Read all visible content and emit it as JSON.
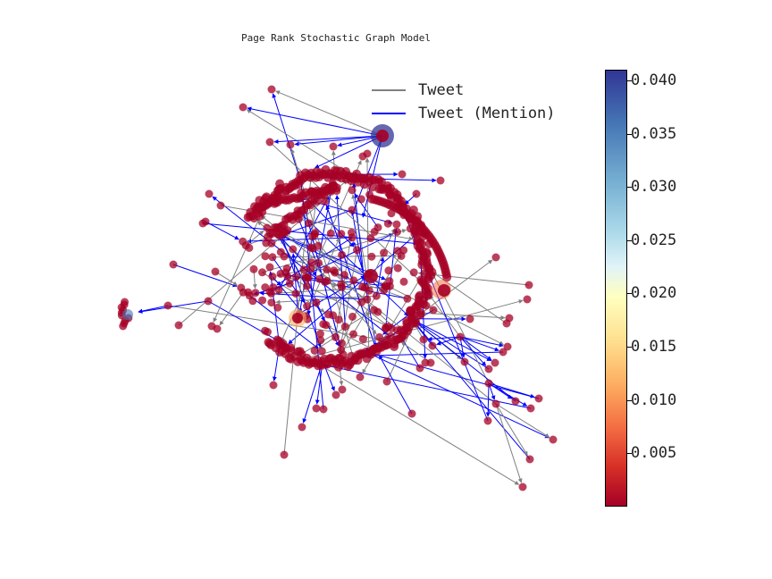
{
  "title": "Page Rank Stochastic Graph Model",
  "legend": [
    {
      "label": "Tweet",
      "color": "#808080"
    },
    {
      "label": "Tweet (Mention)",
      "color": "#0000ff"
    }
  ],
  "colorbar": {
    "colormap": "RdYlBu",
    "range": [
      0.0,
      0.041
    ],
    "ticks": [
      {
        "value": 0.04,
        "label": "0.040"
      },
      {
        "value": 0.035,
        "label": "0.035"
      },
      {
        "value": 0.03,
        "label": "0.030"
      },
      {
        "value": 0.025,
        "label": "0.025"
      },
      {
        "value": 0.02,
        "label": "0.020"
      },
      {
        "value": 0.015,
        "label": "0.015"
      },
      {
        "value": 0.01,
        "label": "0.010"
      },
      {
        "value": 0.005,
        "label": "0.005"
      }
    ]
  },
  "colors": {
    "node_default": "#a50026",
    "node_high": "#313695",
    "edge_tweet": "#808080",
    "edge_mention": "#0000ff"
  }
}
